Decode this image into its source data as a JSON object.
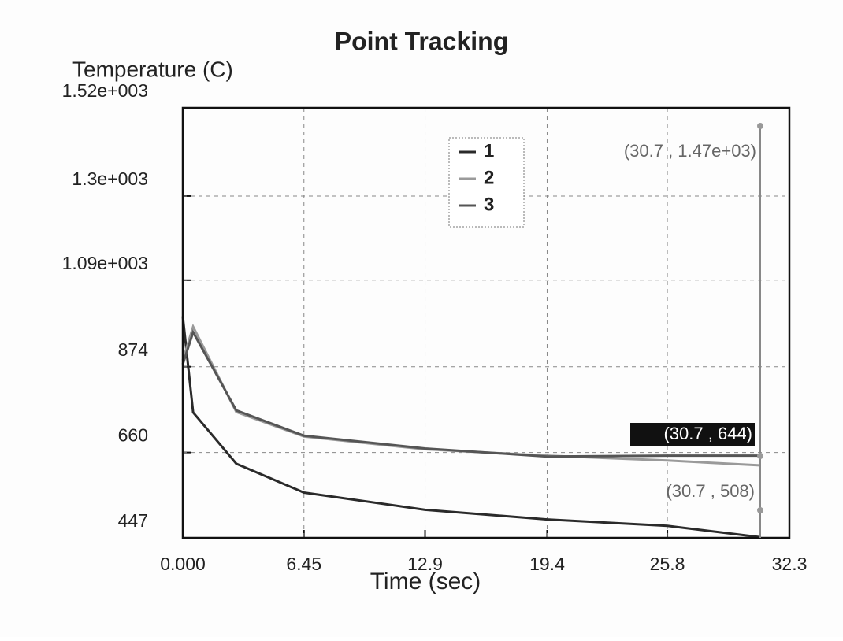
{
  "chart_data": {
    "type": "line",
    "title": "Point Tracking",
    "y_label": "Temperature (C)",
    "x_label": "Time (sec)",
    "x": [
      0,
      0.55,
      2.85,
      6.45,
      12.9,
      19.4,
      25.8,
      30.7
    ],
    "series": [
      {
        "name": "1",
        "color": "#2a2a2a",
        "values": [
          1000,
          760,
          632,
          560,
          517,
          493,
          477,
          449
        ]
      },
      {
        "name": "2",
        "color": "#9a9a9a",
        "values": [
          890,
          974,
          761,
          700,
          668,
          652,
          640,
          628
        ]
      },
      {
        "name": "3",
        "color": "#555555",
        "values": [
          880,
          960,
          765,
          702,
          670,
          650,
          652,
          652
        ]
      }
    ],
    "xlim": [
      0,
      32.3
    ],
    "xticks": [
      {
        "value": 0,
        "label": "0.000"
      },
      6.45,
      12.9,
      19.4,
      25.8,
      32.3
    ],
    "ylim": [
      447,
      1520
    ],
    "yticks": [
      447,
      660,
      874,
      {
        "value": 1090,
        "label": "1.09e+003"
      },
      {
        "value": 1300,
        "label": "1.3e+003"
      },
      {
        "value": 1520,
        "label": "1.52e+003"
      }
    ],
    "grid": true,
    "annotations": [
      "(30.7 , 1.47e+03)",
      "(30.7 , 644)",
      "(30.7 , 508)"
    ]
  }
}
